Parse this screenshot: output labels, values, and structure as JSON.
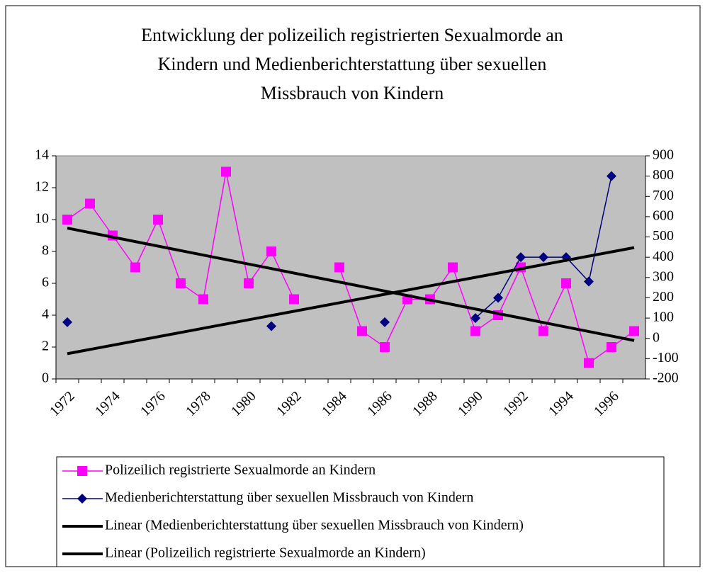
{
  "chart_data": {
    "type": "line",
    "title": [
      "Entwicklung der polizeilich registrierten Sexualmorde an",
      "Kindern und Medienberichterstattung über sexuellen",
      "Missbrauch von Kindern"
    ],
    "categories": [
      "1972",
      null,
      "1974",
      null,
      "1976",
      null,
      "1978",
      null,
      "1980",
      null,
      "1982",
      null,
      "1984",
      null,
      "1986",
      null,
      "1988",
      null,
      "1990",
      null,
      "1992",
      null,
      "1994",
      null,
      "1996",
      null
    ],
    "series": [
      {
        "name": "Polizeilich registrierte Sexualmorde an Kindern",
        "color": "#ff00ff",
        "marker": "square",
        "axis": "y",
        "values": [
          10,
          11,
          9,
          7,
          10,
          6,
          5,
          13,
          6,
          8,
          5,
          null,
          7,
          3,
          2,
          5,
          5,
          7,
          3,
          4,
          7,
          3,
          6,
          1,
          2,
          3
        ]
      },
      {
        "name": "Medienberichterstattung über sexuellen Missbrauch von Kindern",
        "color": "#000080",
        "marker": "diamond",
        "axis": "y2",
        "values": [
          80,
          null,
          null,
          null,
          null,
          null,
          null,
          null,
          null,
          60,
          null,
          null,
          null,
          null,
          80,
          null,
          null,
          null,
          100,
          200,
          400,
          400,
          400,
          280,
          800,
          null
        ]
      },
      {
        "name": "Linear (Medienberichterstattung über sexuellen Missbrauch von Kindern)",
        "color": "#000000",
        "trend": "linear",
        "trend_of": 1,
        "axis": "y2"
      },
      {
        "name": "Linear (Polizeilich registrierte Sexualmorde an Kindern)",
        "color": "#000000",
        "trend": "linear",
        "trend_of": 0,
        "axis": "y"
      }
    ],
    "ylim": [
      0,
      14
    ],
    "yticks": [
      0,
      2,
      4,
      6,
      8,
      10,
      12,
      14
    ],
    "y2lim": [
      -200,
      900
    ],
    "y2ticks": [
      -200,
      -100,
      0,
      100,
      200,
      300,
      400,
      500,
      600,
      700,
      800,
      900
    ],
    "plot_background": "#c0c0c0",
    "grid": false,
    "legend": "bottom"
  }
}
